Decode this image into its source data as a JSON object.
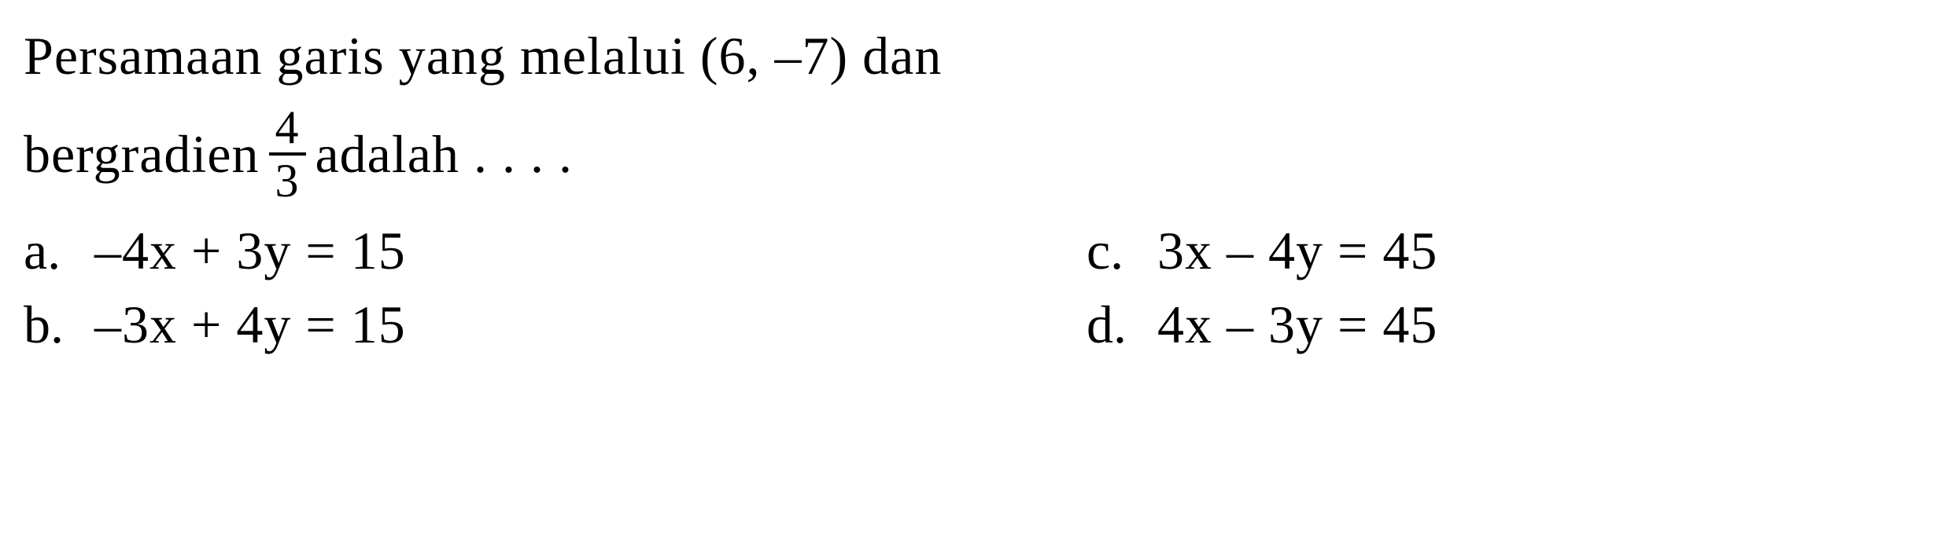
{
  "question": {
    "line1": "Persamaan garis yang melalui (6, –7) dan",
    "line2_before": "bergradien",
    "fraction_num": "4",
    "fraction_den": "3",
    "line2_after": "adalah . . . ."
  },
  "options": {
    "a": {
      "label": "a.",
      "equation": "–4x + 3y = 15"
    },
    "b": {
      "label": "b.",
      "equation": "–3x + 4y = 15"
    },
    "c": {
      "label": "c.",
      "equation": "3x – 4y = 45"
    },
    "d": {
      "label": "d.",
      "equation": "4x – 3y = 45"
    }
  },
  "style": {
    "font_size_pt": 68,
    "text_color": "#000000",
    "background_color": "#ffffff",
    "fraction_border_width": 4
  }
}
